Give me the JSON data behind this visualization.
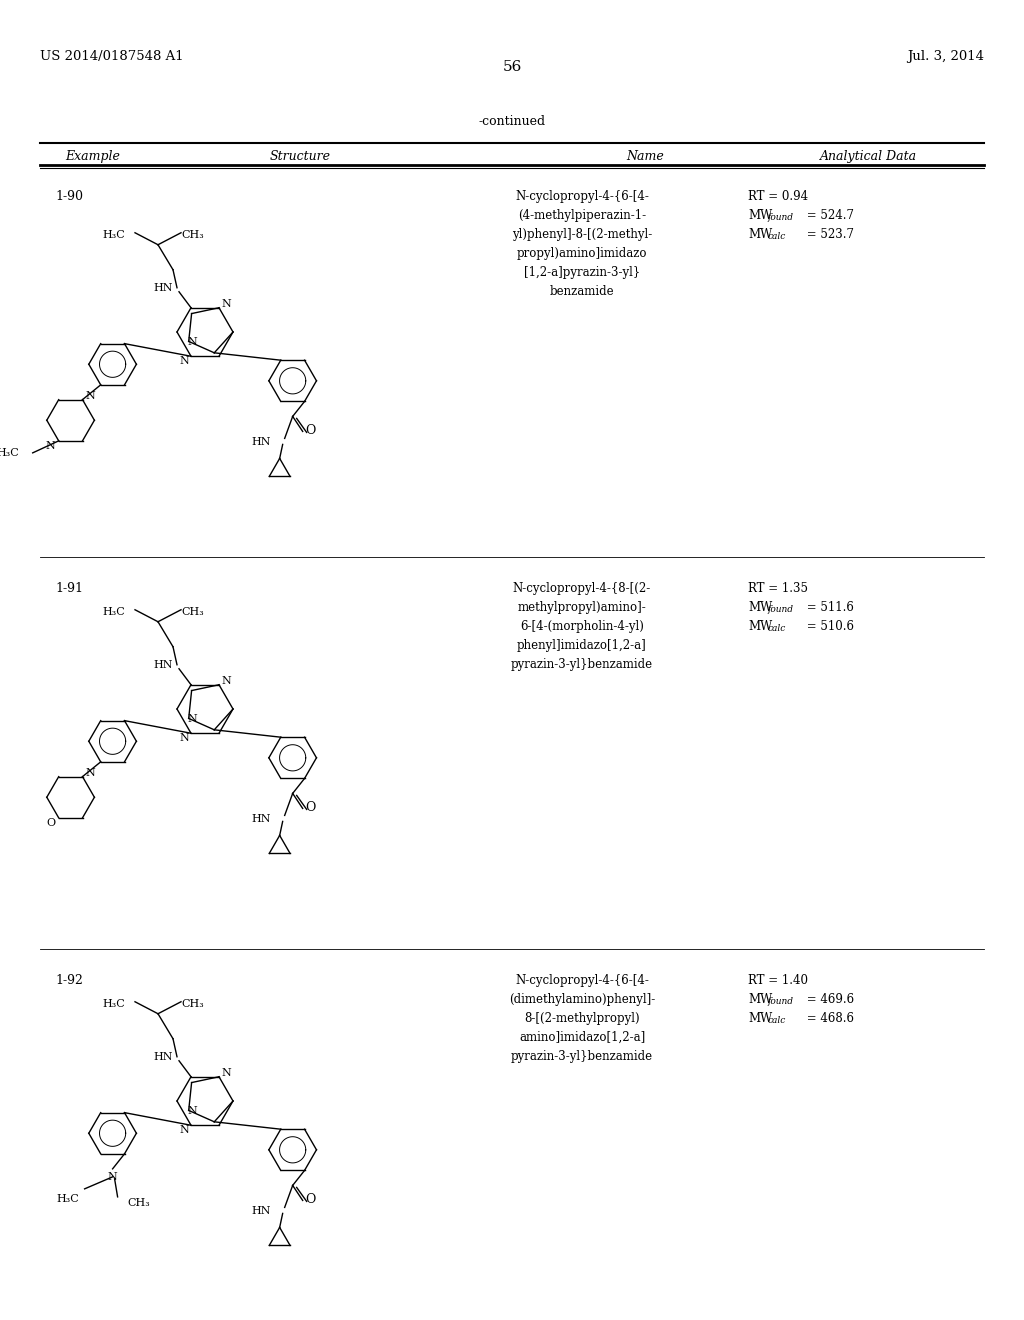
{
  "background_color": "#ffffff",
  "header_left": "US 2014/0187548 A1",
  "header_right": "Jul. 3, 2014",
  "page_number": "56",
  "continued_text": "-continued",
  "table_headers": [
    "Example",
    "Structure",
    "Name",
    "Analytical Data"
  ],
  "rows": [
    {
      "example": "1-90",
      "name_lines": [
        "N-cyclopropyl-4-{6-[4-",
        "(4-methylpiperazin-1-",
        "yl)phenyl]-8-[(2-methyl-",
        "propyl)amino]imidazo",
        "[1,2-a]pyrazin-3-yl}",
        "benzamide"
      ],
      "rt": "RT = 0.94",
      "mw_found": "524.7",
      "mw_calc": "523.7"
    },
    {
      "example": "1-91",
      "name_lines": [
        "N-cyclopropyl-4-{8-[(2-",
        "methylpropyl)amino]-",
        "6-[4-(morpholin-4-yl)",
        "phenyl]imidazo[1,2-a]",
        "pyrazin-3-yl}benzamide"
      ],
      "rt": "RT = 1.35",
      "mw_found": "511.6",
      "mw_calc": "510.6"
    },
    {
      "example": "1-92",
      "name_lines": [
        "N-cyclopropyl-4-{6-[4-",
        "(dimethylamino)phenyl]-",
        "8-[(2-methylpropyl)",
        "amino]imidazo[1,2-a]",
        "pyrazin-3-yl}benzamide"
      ],
      "rt": "RT = 1.40",
      "mw_found": "469.6",
      "mw_calc": "468.6"
    }
  ]
}
